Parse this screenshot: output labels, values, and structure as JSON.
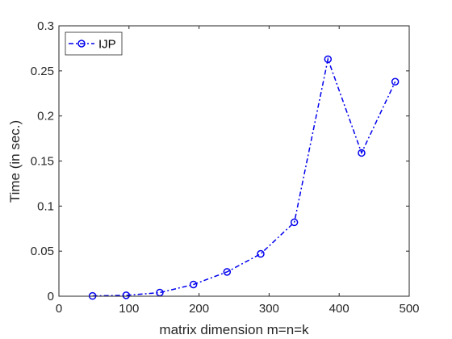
{
  "chart_data": {
    "type": "line",
    "xlabel": "matrix dimension m=n=k",
    "ylabel": "Time (in sec.)",
    "xlim": [
      0,
      500
    ],
    "ylim": [
      0,
      0.3
    ],
    "xticks": [
      0,
      100,
      200,
      300,
      400,
      500
    ],
    "xtick_labels": [
      "0",
      "100",
      "200",
      "300",
      "400",
      "500"
    ],
    "yticks": [
      0,
      0.05,
      0.1,
      0.15,
      0.2,
      0.25,
      0.3
    ],
    "ytick_labels": [
      "0",
      "0.05",
      "0.1",
      "0.15",
      "0.2",
      "0.25",
      "0.3"
    ],
    "grid": false,
    "legend_position": "top-left",
    "series": [
      {
        "name": "IJP",
        "color": "#0000ee",
        "line_style": "dash-dot",
        "marker": "circle",
        "x": [
          48,
          96,
          144,
          192,
          240,
          288,
          336,
          384,
          432,
          480
        ],
        "y": [
          0.0003,
          0.001,
          0.004,
          0.013,
          0.027,
          0.047,
          0.082,
          0.263,
          0.159,
          0.238
        ]
      }
    ]
  }
}
